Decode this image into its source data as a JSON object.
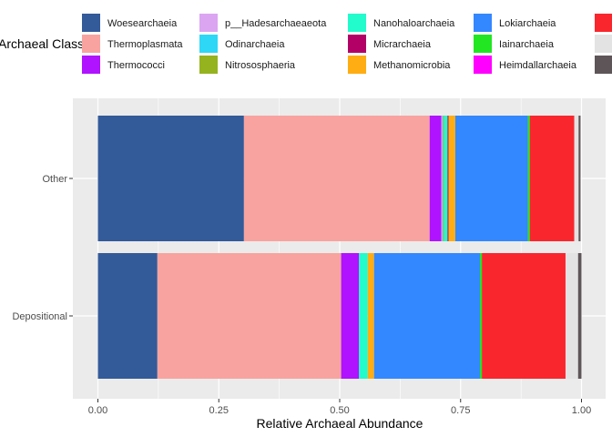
{
  "chart_data": {
    "type": "bar",
    "orientation": "horizontal",
    "stacked": true,
    "categories": [
      "Depositional",
      "Other"
    ],
    "xlabel": "Relative Archaeal Abundance",
    "ylabel": "",
    "xlim": [
      0,
      1
    ],
    "xticks": [
      "0.00",
      "0.25",
      "0.50",
      "0.75",
      "1.00"
    ],
    "grid": true,
    "legend": {
      "title": "Archaeal Class",
      "position": "top"
    },
    "series": [
      {
        "name": "Woesearchaeia",
        "color": "#335A99",
        "values": [
          0.123,
          0.302
        ]
      },
      {
        "name": "Thermoplasmata",
        "color": "#F8A39F",
        "values": [
          0.38,
          0.384
        ]
      },
      {
        "name": "Thermococci",
        "color": "#B013FF",
        "values": [
          0.037,
          0.024
        ]
      },
      {
        "name": "p__Hadesarchaeaeota",
        "color": "#DBA5F2",
        "values": [
          0.0,
          0.002
        ]
      },
      {
        "name": "Odinarchaeia",
        "color": "#2ED7F6",
        "values": [
          0.0,
          0.002
        ]
      },
      {
        "name": "Nitrososphaeria",
        "color": "#95B31E",
        "values": [
          0.0,
          0.002
        ]
      },
      {
        "name": "Nanohaloarchaeia",
        "color": "#22FBCC",
        "values": [
          0.018,
          0.007
        ]
      },
      {
        "name": "Micrarchaeia",
        "color": "#B30067",
        "values": [
          0.0,
          0.002
        ]
      },
      {
        "name": "Methanomicrobia",
        "color": "#FFAD12",
        "values": [
          0.013,
          0.014
        ]
      },
      {
        "name": "Lokiarchaeia",
        "color": "#3388FF",
        "values": [
          0.219,
          0.15
        ]
      },
      {
        "name": "Iainarchaeia",
        "color": "#22E622",
        "values": [
          0.004,
          0.004
        ]
      },
      {
        "name": "Heimdallarchaeia",
        "color": "#FF00FF",
        "values": [
          0.0,
          0.0
        ]
      },
      {
        "name": "",
        "color": "#F9262D",
        "values": [
          0.173,
          0.092
        ]
      },
      {
        "name": "",
        "color": "#E3E3E3",
        "values": [
          0.026,
          0.009
        ]
      },
      {
        "name": "",
        "color": "#5E5558",
        "values": [
          0.007,
          0.004
        ]
      }
    ]
  },
  "colors": {
    "panel_background": "#EBEBEB",
    "gridline": "#FFFFFF"
  }
}
